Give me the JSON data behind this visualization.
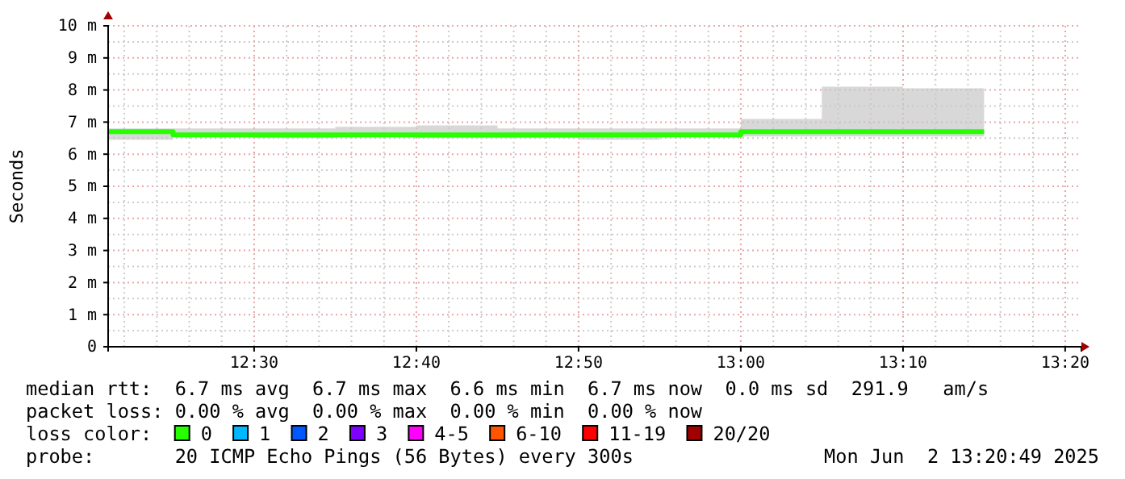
{
  "chart_data": {
    "type": "step",
    "ylabel": "Seconds",
    "legend_title": "loss color:",
    "legend": "bottom",
    "grid": true,
    "xlim": [
      12.35,
      13.35
    ],
    "xticks": [
      {
        "value": 12.5,
        "label": "12:30"
      },
      {
        "value": 12.6667,
        "label": "12:40"
      },
      {
        "value": 12.8333,
        "label": "12:50"
      },
      {
        "value": 13.0,
        "label": "13:00"
      },
      {
        "value": 13.1667,
        "label": "13:10"
      },
      {
        "value": 13.3333,
        "label": "13:20"
      }
    ],
    "ylim": [
      0,
      10
    ],
    "yticks": [
      0,
      {
        "value": 1,
        "label": "1 m"
      },
      {
        "value": 2,
        "label": "2 m"
      },
      {
        "value": 3,
        "label": "3 m"
      },
      {
        "value": 4,
        "label": "4 m"
      },
      {
        "value": 5,
        "label": "5 m"
      },
      {
        "value": 6,
        "label": "6 m"
      },
      {
        "value": 7,
        "label": "7 m"
      },
      {
        "value": 8,
        "label": "8 m"
      },
      {
        "value": 9,
        "label": "9 m"
      },
      {
        "value": 10,
        "label": "10 m"
      }
    ],
    "x": [
      12.35,
      12.4167,
      12.5,
      12.5833,
      12.6667,
      12.75,
      12.8333,
      12.9167,
      13.0,
      13.0833,
      13.1667,
      13.25
    ],
    "series": [
      {
        "name": "0",
        "color": "#26ff00",
        "values": [
          6.7,
          6.6,
          6.6,
          6.6,
          6.6,
          6.6,
          6.6,
          6.6,
          6.7,
          6.7,
          6.7,
          6.7
        ],
        "lower": [
          6.45,
          6.6,
          6.5,
          6.55,
          6.5,
          6.5,
          6.45,
          6.55,
          6.55,
          6.55,
          6.55,
          6.55
        ],
        "upper": [
          6.8,
          6.8,
          6.8,
          6.85,
          6.9,
          6.8,
          6.8,
          6.8,
          7.1,
          8.1,
          8.05,
          8.05
        ]
      },
      {
        "name": "1",
        "color": "#00b8ff",
        "values": [
          null,
          null,
          null,
          null,
          null,
          null,
          null,
          null,
          null,
          null,
          null,
          null
        ]
      },
      {
        "name": "2",
        "color": "#0059ff",
        "values": [
          null,
          null,
          null,
          null,
          null,
          null,
          null,
          null,
          null,
          null,
          null,
          null
        ]
      },
      {
        "name": "3",
        "color": "#7e00ff",
        "values": [
          null,
          null,
          null,
          null,
          null,
          null,
          null,
          null,
          null,
          null,
          null,
          null
        ]
      },
      {
        "name": "4-5",
        "color": "#ff00ff",
        "values": [
          null,
          null,
          null,
          null,
          null,
          null,
          null,
          null,
          null,
          null,
          null,
          null
        ]
      },
      {
        "name": "6-10",
        "color": "#ff5500",
        "values": [
          null,
          null,
          null,
          null,
          null,
          null,
          null,
          null,
          null,
          null,
          null,
          null
        ]
      },
      {
        "name": "11-19",
        "color": "#ff0000",
        "values": [
          null,
          null,
          null,
          null,
          null,
          null,
          null,
          null,
          null,
          null,
          null,
          null
        ]
      },
      {
        "name": "20/20",
        "color": "#a10000",
        "values": [
          null,
          null,
          null,
          null,
          null,
          null,
          null,
          null,
          null,
          null,
          null,
          null
        ]
      }
    ],
    "annotations": [
      "median rtt:  6.7 ms avg  6.7 ms max  6.6 ms min  6.7 ms now  0.0 ms sd  291.9   am/s",
      "packet loss: 0.00 % avg  0.00 % max  0.00 % min  0.00 % now",
      "probe:       20 ICMP Echo Pings (56 Bytes) every 300s",
      "Mon Jun  2 13:20:49 2025"
    ]
  }
}
